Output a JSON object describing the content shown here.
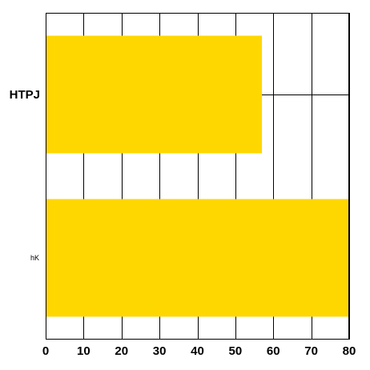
{
  "chart_data": {
    "type": "bar",
    "orientation": "horizontal",
    "categories": [
      "HTPJ",
      "hK"
    ],
    "values": [
      57,
      80
    ],
    "title": "",
    "xlabel": "",
    "ylabel": "",
    "xlim": [
      0,
      80
    ],
    "xticks": [
      "0",
      "10",
      "20",
      "30",
      "40",
      "50",
      "60",
      "70",
      "80"
    ],
    "grid": true,
    "legend": "none",
    "bar_color": "#FFD700",
    "grid_color": "#000000"
  }
}
